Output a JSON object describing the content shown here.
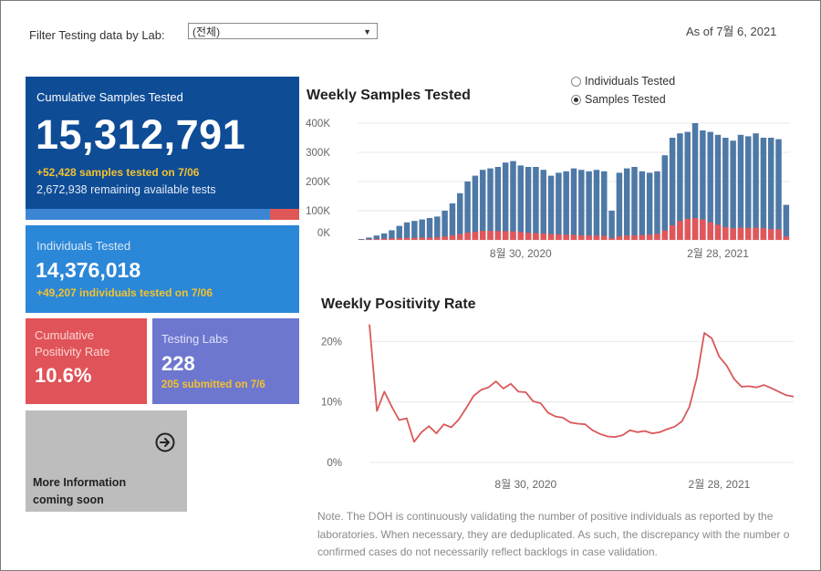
{
  "filter": {
    "label": "Filter Testing data by Lab:",
    "selected": "(전체)"
  },
  "as_of": "As of 7월 6, 2021",
  "cards": {
    "cumulative_samples": {
      "title": "Cumulative Samples Tested",
      "value": "15,312,791",
      "sub1": "+52,428 samples tested on 7/06",
      "sub2": "2,672,938 remaining available tests",
      "positive_fraction": 0.106
    },
    "individuals": {
      "title": "Individuals Tested",
      "value": "14,376,018",
      "sub": "+49,207  individuals  tested on 7/06"
    },
    "positivity": {
      "title_line1": "Cumulative",
      "title_line2": "Positivity Rate",
      "value": "10.6%"
    },
    "labs": {
      "title": "Testing Labs",
      "value": "228",
      "sub": "205 submitted on 7/6"
    },
    "more_info": {
      "line1": "More Information",
      "line2": "coming soon"
    }
  },
  "weekly_samples": {
    "title": "Weekly Samples Tested",
    "radio_options": [
      "Individuals Tested",
      "Samples Tested"
    ],
    "radio_selected": "Samples Tested"
  },
  "weekly_positivity": {
    "title": "Weekly Positivity Rate"
  },
  "note": [
    "Note. The DOH is continuously validating the number of positive individuals as reported by the",
    "laboratories. When necessary, they are deduplicated. As such, the discrepancy with the number o",
    "confirmed cases do not necessarily reflect backlogs in case validation."
  ],
  "colors": {
    "tested": "#4e79a7",
    "positive": "#e15759",
    "line": "#d9595b"
  },
  "chart_data": [
    {
      "type": "bar",
      "title": "Weekly Samples Tested",
      "x_tick_labels": [
        "8월 30, 2020",
        "2월 28, 2021"
      ],
      "y_tick_labels": [
        "0K",
        "100K",
        "200K",
        "300K",
        "400K"
      ],
      "ylim": [
        0,
        400000
      ],
      "series": [
        {
          "values": [
            3000,
            8000,
            15000,
            22000,
            33000,
            48000,
            60000,
            65000,
            70000,
            75000,
            80000,
            100000,
            125000,
            160000,
            200000,
            220000,
            240000,
            245000,
            250000,
            265000,
            270000,
            255000,
            250000,
            250000,
            240000,
            220000,
            230000,
            235000,
            245000,
            240000,
            235000,
            240000,
            235000,
            100000,
            230000,
            245000,
            250000,
            235000,
            230000,
            235000,
            290000,
            350000,
            365000,
            370000,
            400000,
            375000,
            370000,
            360000,
            350000,
            340000,
            360000,
            355000,
            365000,
            350000,
            350000,
            345000,
            120000
          ]
        },
        {
          "values": [
            1000,
            2000,
            3000,
            4000,
            5000,
            6000,
            7000,
            7000,
            8000,
            8000,
            9000,
            12000,
            15000,
            20000,
            25000,
            28000,
            31000,
            31000,
            30000,
            30000,
            29000,
            27000,
            24000,
            23000,
            22000,
            20000,
            19000,
            18000,
            17000,
            16000,
            15000,
            15000,
            14000,
            6000,
            13000,
            15000,
            16000,
            17000,
            18000,
            21000,
            32000,
            50000,
            65000,
            72000,
            75000,
            70000,
            60000,
            52000,
            44000,
            40000,
            42000,
            41000,
            42000,
            40000,
            37000,
            36000,
            12000
          ]
        }
      ]
    },
    {
      "type": "line",
      "title": "Weekly Positivity Rate",
      "x_tick_labels": [
        "8월 30, 2020",
        "2월 28, 2021"
      ],
      "y_tick_labels": [
        "0%",
        "10%",
        "20%"
      ],
      "ylim": [
        0,
        22
      ],
      "values": [
        22.8,
        8.5,
        11.7,
        9.2,
        7.0,
        7.3,
        3.4,
        5.0,
        6.0,
        4.8,
        6.3,
        5.8,
        7.1,
        9.0,
        11.0,
        12.0,
        12.4,
        13.4,
        12.2,
        13.0,
        11.7,
        11.6,
        10.1,
        9.8,
        8.2,
        7.6,
        7.4,
        6.6,
        6.4,
        6.3,
        5.3,
        4.7,
        4.3,
        4.2,
        4.5,
        5.3,
        5.0,
        5.2,
        4.8,
        5.0,
        5.5,
        5.9,
        6.8,
        9.2,
        14.0,
        21.4,
        20.5,
        17.5,
        16.0,
        13.8,
        12.5,
        12.6,
        12.4,
        12.8,
        12.3,
        11.7,
        11.1,
        10.9
      ]
    }
  ]
}
